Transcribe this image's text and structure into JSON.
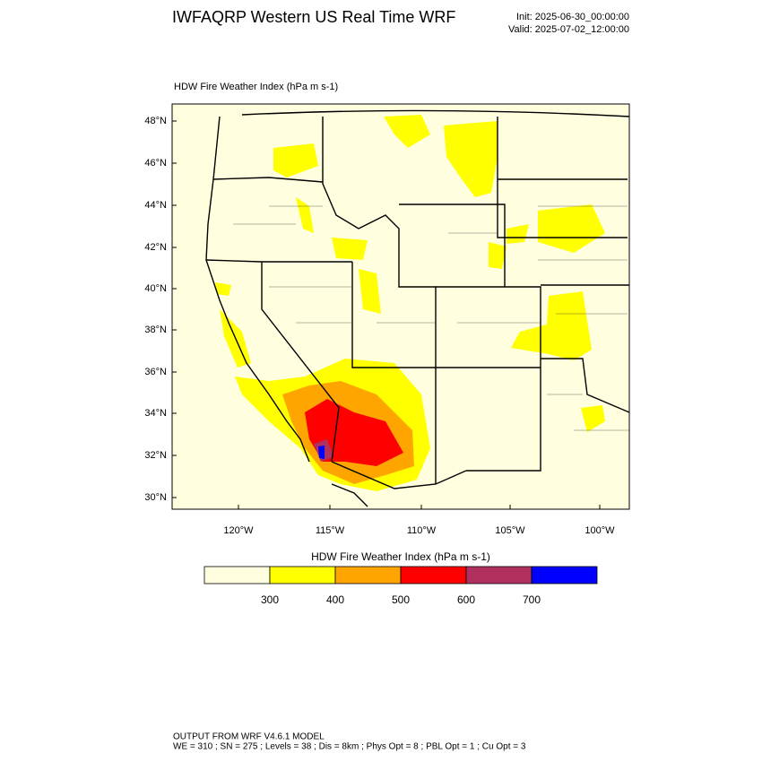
{
  "header": {
    "title": "IWFAQRP Western US Real Time WRF",
    "init": "Init: 2025-06-30_00:00:00",
    "valid": "Valid: 2025-07-02_12:00:00"
  },
  "map": {
    "title": "HDW Fire Weather Index   (hPa m s-1)",
    "lat_labels": [
      "48°N",
      "46°N",
      "44°N",
      "42°N",
      "40°N",
      "38°N",
      "36°N",
      "34°N",
      "32°N",
      "30°N"
    ],
    "lon_labels": [
      "120°W",
      "115°W",
      "110°W",
      "105°W",
      "100°W"
    ]
  },
  "colorbar": {
    "title": "HDW Fire Weather Index (hPa m s-1)",
    "levels": [
      300,
      400,
      500,
      600,
      700
    ],
    "colors": [
      "#ffffe0",
      "#ffff00",
      "#ffa500",
      "#ff0000",
      "#b03060",
      "#0000ff"
    ]
  },
  "footer": {
    "line1": "OUTPUT FROM WRF V4.6.1 MODEL",
    "line2": "WE = 310 ; SN = 275 ; Levels = 38 ; Dis = 8km ; Phys Opt = 8 ; PBL Opt = 1 ; Cu Opt = 3"
  }
}
